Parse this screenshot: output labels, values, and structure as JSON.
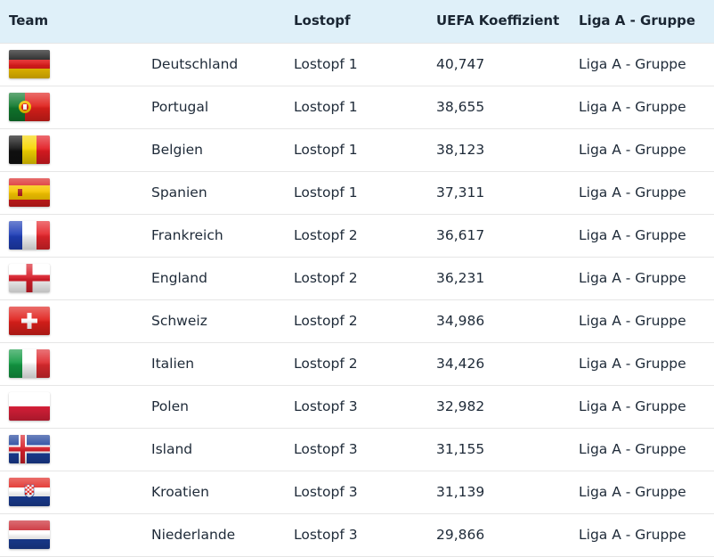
{
  "header": {
    "team": "Team",
    "name": "",
    "pot": "Lostopf",
    "coefficient": "UEFA Koeffizient",
    "league": "Liga A - Gruppe"
  },
  "rows": [
    {
      "flag": "germany-flag-icon",
      "name": "Deutschland",
      "pot": "Lostopf 1",
      "coefficient": "40,747",
      "league": "Liga A - Gruppe"
    },
    {
      "flag": "portugal-flag-icon",
      "name": "Portugal",
      "pot": "Lostopf 1",
      "coefficient": "38,655",
      "league": "Liga A - Gruppe"
    },
    {
      "flag": "belgium-flag-icon",
      "name": "Belgien",
      "pot": "Lostopf 1",
      "coefficient": "38,123",
      "league": "Liga A - Gruppe"
    },
    {
      "flag": "spain-flag-icon",
      "name": "Spanien",
      "pot": "Lostopf 1",
      "coefficient": "37,311",
      "league": "Liga A - Gruppe"
    },
    {
      "flag": "france-flag-icon",
      "name": "Frankreich",
      "pot": "Lostopf 2",
      "coefficient": "36,617",
      "league": "Liga A - Gruppe"
    },
    {
      "flag": "england-flag-icon",
      "name": "England",
      "pot": "Lostopf 2",
      "coefficient": "36,231",
      "league": "Liga A - Gruppe"
    },
    {
      "flag": "switzerland-flag-icon",
      "name": "Schweiz",
      "pot": "Lostopf 2",
      "coefficient": "34,986",
      "league": "Liga A - Gruppe"
    },
    {
      "flag": "italy-flag-icon",
      "name": "Italien",
      "pot": "Lostopf 2",
      "coefficient": "34,426",
      "league": "Liga A - Gruppe"
    },
    {
      "flag": "poland-flag-icon",
      "name": "Polen",
      "pot": "Lostopf 3",
      "coefficient": "32,982",
      "league": "Liga A - Gruppe"
    },
    {
      "flag": "iceland-flag-icon",
      "name": "Island",
      "pot": "Lostopf 3",
      "coefficient": "31,155",
      "league": "Liga A - Gruppe"
    },
    {
      "flag": "croatia-flag-icon",
      "name": "Kroatien",
      "pot": "Lostopf 3",
      "coefficient": "31,139",
      "league": "Liga A - Gruppe"
    },
    {
      "flag": "netherlands-flag-icon",
      "name": "Niederlande",
      "pot": "Lostopf 3",
      "coefficient": "29,866",
      "league": "Liga A - Gruppe"
    }
  ],
  "colors": {
    "header_bg": "#dff0f9",
    "row_border": "#e6e6e6",
    "text": "#1e2a38"
  }
}
